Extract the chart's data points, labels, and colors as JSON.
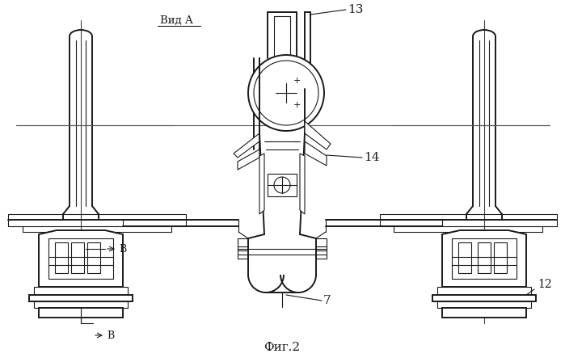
{
  "title": "Фиг.2",
  "label_vid_a": "Вид А",
  "label_13": "13",
  "label_14": "14",
  "label_7": "7",
  "label_12": "12",
  "label_B": "В",
  "bg_color": "#ffffff",
  "line_color": "#1a1a1a",
  "fig_width": 6.99,
  "fig_height": 4.48
}
